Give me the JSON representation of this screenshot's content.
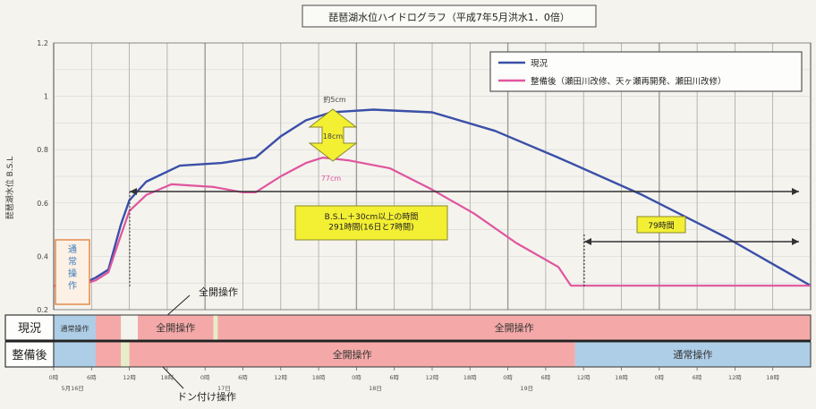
{
  "chart_data": {
    "type": "line",
    "title": "琵琶湖水位ハイドログラフ（平成7年5月洪水1．0倍）",
    "ylabel": "琵琶湖水位 B.S.L",
    "ylim": [
      0.2,
      1.2
    ],
    "yticks": [
      "1.2",
      "1",
      "0.8",
      "0.6",
      "0.4",
      "0.2"
    ],
    "xrange_hours": [
      0,
      180
    ],
    "grid": true,
    "legend_position": "top-right",
    "series": [
      {
        "name": "現況",
        "color": "#3b4fa8",
        "points": [
          [
            0,
            0.29
          ],
          [
            6,
            0.29
          ],
          [
            10,
            0.32
          ],
          [
            13,
            0.35
          ],
          [
            16,
            0.52
          ],
          [
            18,
            0.61
          ],
          [
            22,
            0.68
          ],
          [
            30,
            0.74
          ],
          [
            40,
            0.75
          ],
          [
            48,
            0.77
          ],
          [
            54,
            0.85
          ],
          [
            60,
            0.91
          ],
          [
            66,
            0.94
          ],
          [
            76,
            0.95
          ],
          [
            90,
            0.94
          ],
          [
            105,
            0.87
          ],
          [
            120,
            0.77
          ],
          [
            140,
            0.63
          ],
          [
            160,
            0.47
          ],
          [
            180,
            0.29
          ]
        ]
      },
      {
        "name": "整備後（瀬田川改修、天ヶ瀬再開発、瀬田川改修）",
        "color": "#e0559e",
        "points": [
          [
            0,
            0.29
          ],
          [
            6,
            0.29
          ],
          [
            10,
            0.31
          ],
          [
            13,
            0.34
          ],
          [
            16,
            0.48
          ],
          [
            18,
            0.57
          ],
          [
            22,
            0.63
          ],
          [
            28,
            0.67
          ],
          [
            38,
            0.66
          ],
          [
            45,
            0.64
          ],
          [
            48,
            0.64
          ],
          [
            54,
            0.7
          ],
          [
            60,
            0.75
          ],
          [
            64,
            0.77
          ],
          [
            70,
            0.76
          ],
          [
            80,
            0.73
          ],
          [
            90,
            0.65
          ],
          [
            100,
            0.56
          ],
          [
            110,
            0.45
          ],
          [
            120,
            0.36
          ],
          [
            123,
            0.29
          ],
          [
            150,
            0.29
          ],
          [
            180,
            0.29
          ]
        ]
      }
    ],
    "annotations": {
      "peak_current": "約5cm",
      "peak_after": "77cm",
      "peak_diff": "18cm",
      "long_box": "B.S.L.＋30cm以上の時間\n291時間(16日と7時間)",
      "short_box": "79時間",
      "start_box": "通常操作",
      "zenkai_top": "全開操作",
      "don_bottom": "ドン付け操作"
    },
    "xticks": [
      "0時",
      "6時",
      "12時",
      "18時",
      "0時",
      "6時",
      "12時",
      "18時",
      "0時",
      "6時",
      "12時",
      "18時",
      "0時",
      "6時",
      "12時",
      "18時",
      "0時",
      "6時",
      "12時",
      "18時"
    ],
    "date_labels": [
      "5月16日",
      "17日",
      "18日",
      "19日"
    ],
    "operation_rows": [
      {
        "label": "現況",
        "segments": [
          {
            "from": 0,
            "to": 10,
            "label": "通常操作",
            "color": "#aecde6"
          },
          {
            "from": 10,
            "to": 16,
            "label": "",
            "color": "#f4a9a8"
          },
          {
            "from": 16,
            "to": 20,
            "label": "",
            "color": "#f4f3ee"
          },
          {
            "from": 20,
            "to": 38,
            "label": "全開操作",
            "color": "#f4a9a8"
          },
          {
            "from": 38,
            "to": 39,
            "label": "",
            "color": "#e6edc8"
          },
          {
            "from": 39,
            "to": 180,
            "label": "全開操作",
            "color": "#f4a9a8"
          }
        ]
      },
      {
        "label": "整備後",
        "segments": [
          {
            "from": 0,
            "to": 10,
            "label": "",
            "color": "#aecde6"
          },
          {
            "from": 10,
            "to": 16,
            "label": "",
            "color": "#f4a9a8"
          },
          {
            "from": 16,
            "to": 18,
            "label": "",
            "color": "#e6edc8"
          },
          {
            "from": 18,
            "to": 124,
            "label": "全開操作",
            "color": "#f4a9a8"
          },
          {
            "from": 124,
            "to": 180,
            "label": "通常操作",
            "color": "#aecde6"
          }
        ]
      }
    ]
  }
}
